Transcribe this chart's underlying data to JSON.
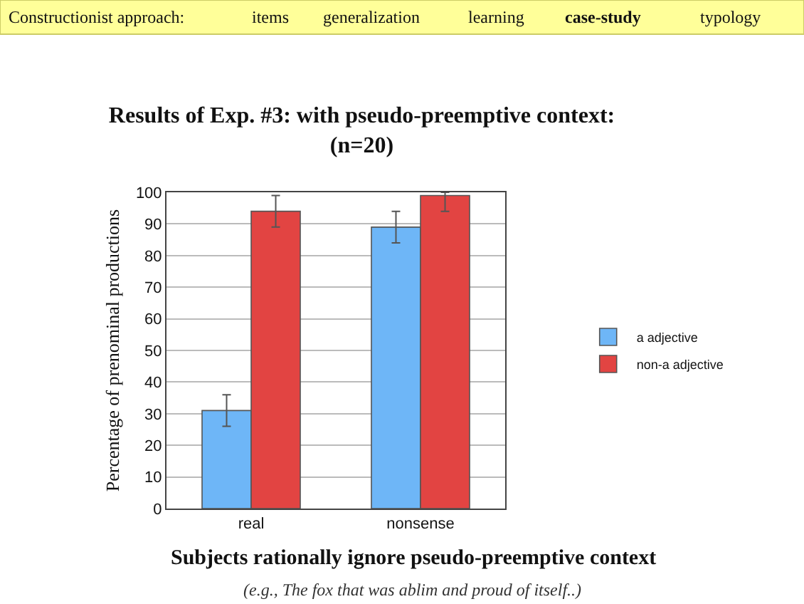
{
  "chart_data": {
    "type": "bar",
    "title": "Results of Exp. #3: with pseudo-preemptive context:\n(n=20)",
    "ylabel": "Percentage of prenominal productions",
    "categories": [
      "real",
      "nonsense"
    ],
    "series": [
      {
        "name": "a adjective",
        "color": "#6eb6f7",
        "values": [
          31,
          89
        ],
        "errors": [
          5,
          5
        ]
      },
      {
        "name": "non-a adjective",
        "color": "#e24442",
        "values": [
          94,
          99
        ],
        "errors": [
          5,
          [
            94,
            100
          ]
        ]
      }
    ],
    "ylim": [
      0,
      100
    ],
    "yticks": [
      0,
      10,
      20,
      30,
      40,
      50,
      60,
      70,
      80,
      90,
      100
    ],
    "grid": "y",
    "legend": "right",
    "annotations": [
      "Constructionist approach:",
      "items",
      "generalization",
      "learning",
      "case-study",
      "typology",
      "Subjects rationally ignore pseudo-preemptive context",
      "(e.g., The fox that was ablim and proud of itself..)"
    ]
  }
}
